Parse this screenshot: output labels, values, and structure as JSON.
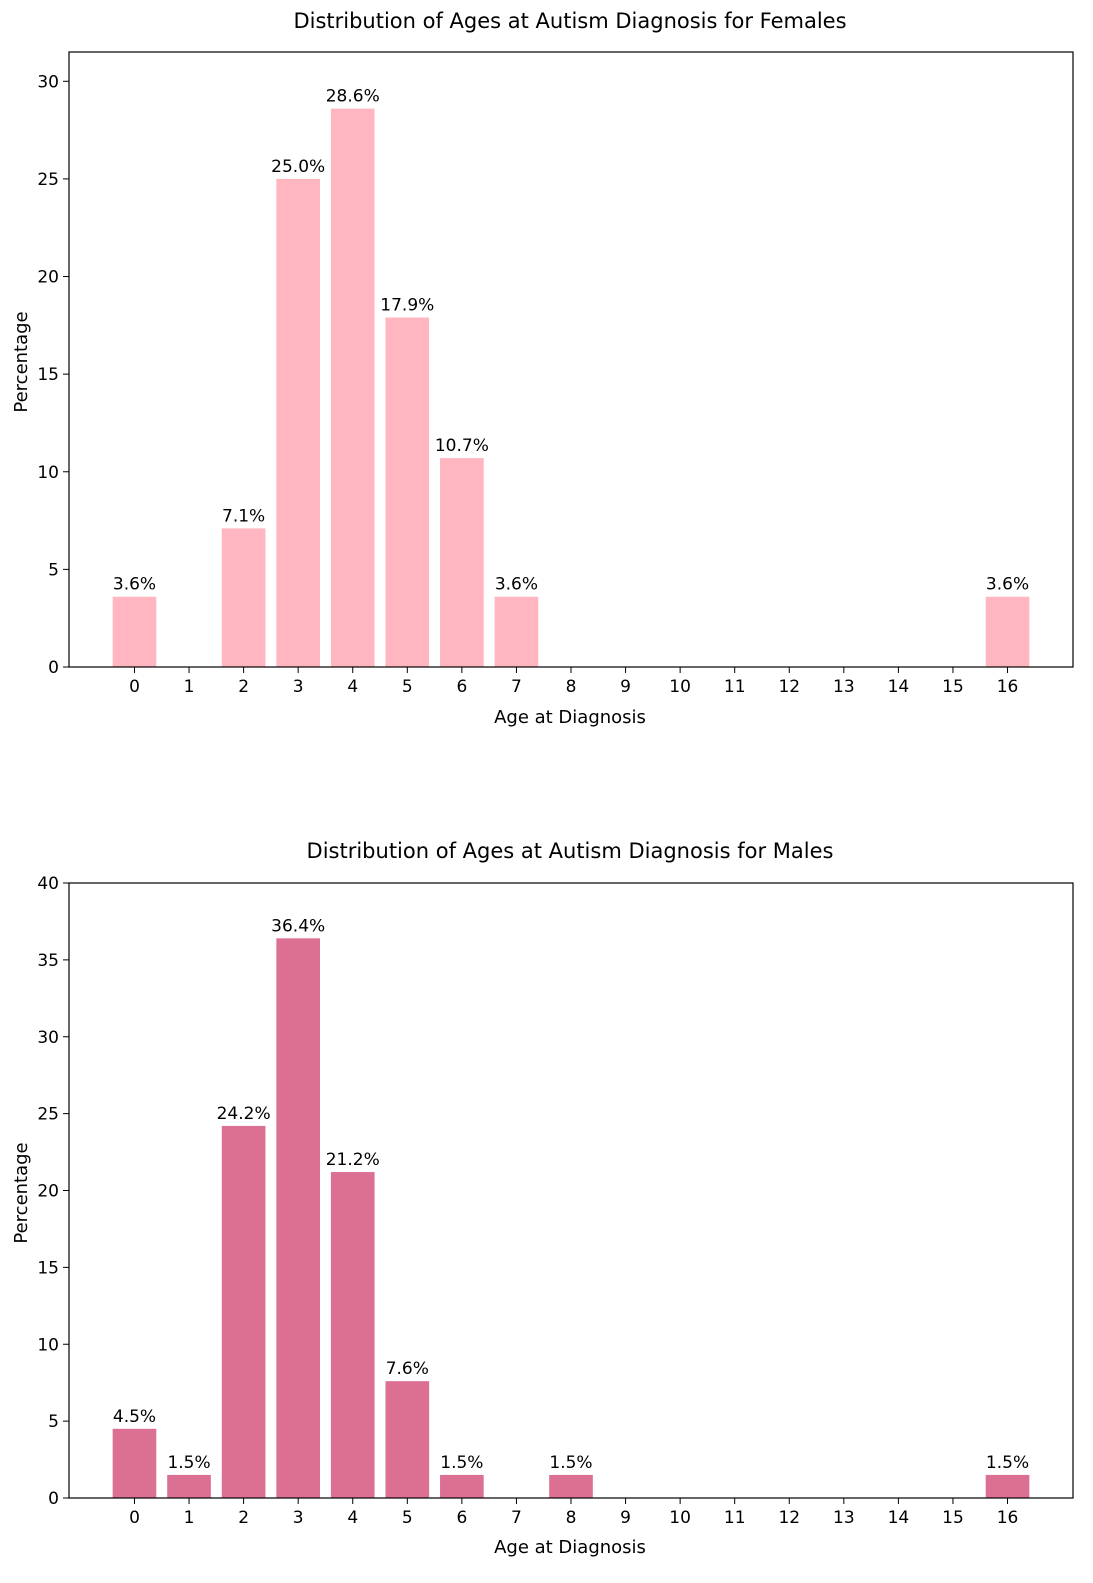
{
  "chart_data": [
    {
      "type": "bar",
      "title": "Distribution of Ages at Autism Diagnosis for Females",
      "xlabel": "Age at Diagnosis",
      "ylabel": "Percentage",
      "categories": [
        "0",
        "1",
        "2",
        "3",
        "4",
        "5",
        "6",
        "7",
        "8",
        "9",
        "10",
        "11",
        "12",
        "13",
        "14",
        "15",
        "16"
      ],
      "values": [
        3.6,
        0,
        7.1,
        25.0,
        28.6,
        17.9,
        10.7,
        3.6,
        0,
        0,
        0,
        0,
        0,
        0,
        0,
        0,
        3.6
      ],
      "data_labels": [
        "3.6%",
        "",
        "7.1%",
        "25.0%",
        "28.6%",
        "17.9%",
        "10.7%",
        "3.6%",
        "",
        "",
        "",
        "",
        "",
        "",
        "",
        "",
        "3.6%"
      ],
      "yticks": [
        "0",
        "5",
        "10",
        "15",
        "20",
        "25",
        "30"
      ],
      "ylim": [
        0,
        31.5
      ],
      "bar_color": "#ffb6c1",
      "grid": false
    },
    {
      "type": "bar",
      "title": "Distribution of Ages at Autism Diagnosis for Males",
      "xlabel": "Age at Diagnosis",
      "ylabel": "Percentage",
      "categories": [
        "0",
        "1",
        "2",
        "3",
        "4",
        "5",
        "6",
        "7",
        "8",
        "9",
        "10",
        "11",
        "12",
        "13",
        "14",
        "15",
        "16"
      ],
      "values": [
        4.5,
        1.5,
        24.2,
        36.4,
        21.2,
        7.6,
        1.5,
        0,
        1.5,
        0,
        0,
        0,
        0,
        0,
        0,
        0,
        1.5
      ],
      "data_labels": [
        "4.5%",
        "1.5%",
        "24.2%",
        "36.4%",
        "21.2%",
        "7.6%",
        "1.5%",
        "",
        "1.5%",
        "",
        "",
        "",
        "",
        "",
        "",
        "",
        "1.5%"
      ],
      "yticks": [
        "0",
        "5",
        "10",
        "15",
        "20",
        "25",
        "30",
        "35",
        "40"
      ],
      "ylim": [
        0,
        40
      ],
      "bar_color": "#db7093",
      "grid": false
    }
  ]
}
